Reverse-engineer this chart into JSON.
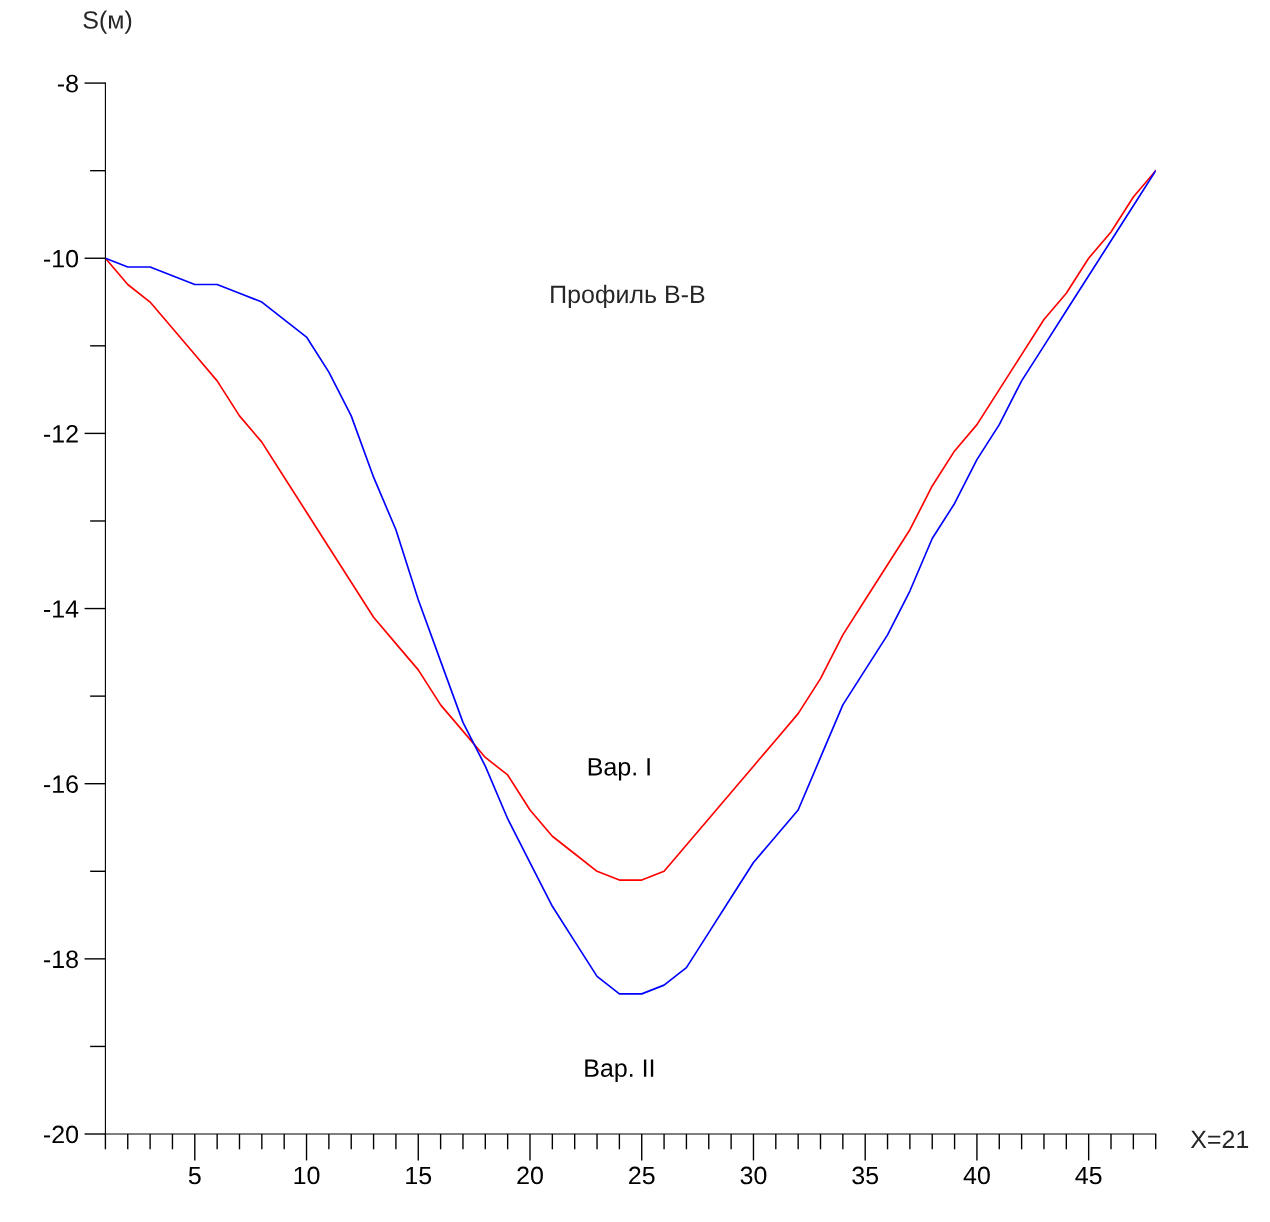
{
  "chart_data": {
    "type": "line",
    "title": "Профиль В-В",
    "xlabel": "X=21",
    "ylabel": "S(м)",
    "x": [
      1,
      2,
      3,
      4,
      5,
      6,
      7,
      8,
      9,
      10,
      11,
      12,
      13,
      14,
      15,
      16,
      17,
      18,
      19,
      20,
      21,
      22,
      23,
      24,
      25,
      26,
      27,
      28,
      29,
      30,
      31,
      32,
      33,
      34,
      35,
      36,
      37,
      38,
      39,
      40,
      41,
      42,
      43,
      44,
      45,
      46,
      47,
      48
    ],
    "series": [
      {
        "name": "Вар. I",
        "color": "#ff0000",
        "values": [
          -10,
          -10.3,
          -10.5,
          -10.8,
          -11.1,
          -11.4,
          -11.8,
          -12.1,
          -12.5,
          -12.9,
          -13.3,
          -13.7,
          -14.1,
          -14.4,
          -14.7,
          -15.1,
          -15.4,
          -15.7,
          -15.9,
          -16.3,
          -16.6,
          -16.8,
          -17.0,
          -17.1,
          -17.1,
          -17.0,
          -16.7,
          -16.4,
          -16.1,
          -15.8,
          -15.5,
          -15.2,
          -14.8,
          -14.3,
          -13.9,
          -13.5,
          -13.1,
          -12.6,
          -12.2,
          -11.9,
          -11.5,
          -11.1,
          -10.7,
          -10.4,
          -10.0,
          -9.7,
          -9.3,
          -9.0
        ]
      },
      {
        "name": "Вар. II",
        "color": "#0000ff",
        "values": [
          -10,
          -10.1,
          -10.1,
          -10.2,
          -10.3,
          -10.3,
          -10.4,
          -10.5,
          -10.7,
          -10.9,
          -11.3,
          -11.8,
          -12.5,
          -13.1,
          -13.9,
          -14.6,
          -15.3,
          -15.8,
          -16.4,
          -16.9,
          -17.4,
          -17.8,
          -18.2,
          -18.4,
          -18.4,
          -18.3,
          -18.1,
          -17.7,
          -17.3,
          -16.9,
          -16.6,
          -16.3,
          -15.7,
          -15.1,
          -14.7,
          -14.3,
          -13.8,
          -13.2,
          -12.8,
          -12.3,
          -11.9,
          -11.4,
          -11.0,
          -10.6,
          -10.2,
          -9.8,
          -9.4,
          -9.0
        ]
      }
    ],
    "xlim": [
      1,
      48
    ],
    "xticks": [
      {
        "value": 1,
        "label": null
      },
      {
        "value": 2,
        "label": null
      },
      {
        "value": 3,
        "label": null
      },
      {
        "value": 4,
        "label": null
      },
      5,
      {
        "value": 6,
        "label": null
      },
      {
        "value": 7,
        "label": null
      },
      {
        "value": 8,
        "label": null
      },
      {
        "value": 9,
        "label": null
      },
      10,
      {
        "value": 11,
        "label": null
      },
      {
        "value": 12,
        "label": null
      },
      {
        "value": 13,
        "label": null
      },
      {
        "value": 14,
        "label": null
      },
      15,
      {
        "value": 16,
        "label": null
      },
      {
        "value": 17,
        "label": null
      },
      {
        "value": 18,
        "label": null
      },
      {
        "value": 19,
        "label": null
      },
      20,
      {
        "value": 21,
        "label": null
      },
      {
        "value": 22,
        "label": null
      },
      {
        "value": 23,
        "label": null
      },
      {
        "value": 24,
        "label": null
      },
      25,
      {
        "value": 26,
        "label": null
      },
      {
        "value": 27,
        "label": null
      },
      {
        "value": 28,
        "label": null
      },
      {
        "value": 29,
        "label": null
      },
      30,
      {
        "value": 31,
        "label": null
      },
      {
        "value": 32,
        "label": null
      },
      {
        "value": 33,
        "label": null
      },
      {
        "value": 34,
        "label": null
      },
      35,
      {
        "value": 36,
        "label": null
      },
      {
        "value": 37,
        "label": null
      },
      {
        "value": 38,
        "label": null
      },
      {
        "value": 39,
        "label": null
      },
      40,
      {
        "value": 41,
        "label": null
      },
      {
        "value": 42,
        "label": null
      },
      {
        "value": 43,
        "label": null
      },
      {
        "value": 44,
        "label": null
      },
      45,
      {
        "value": 46,
        "label": null
      },
      {
        "value": 47,
        "label": null
      },
      {
        "value": 48,
        "label": null
      }
    ],
    "ylim": [
      -20,
      -8
    ],
    "yticks": [
      -20,
      {
        "value": -19,
        "label": null
      },
      -18,
      {
        "value": -17,
        "label": null
      },
      -16,
      {
        "value": -15,
        "label": null
      },
      -14,
      {
        "value": -13,
        "label": null
      },
      -12,
      {
        "value": -11,
        "label": null
      },
      -10,
      {
        "value": -9,
        "label": null
      },
      -8
    ],
    "grid": false,
    "legend": false,
    "marker": "none",
    "line_style": "solid"
  }
}
